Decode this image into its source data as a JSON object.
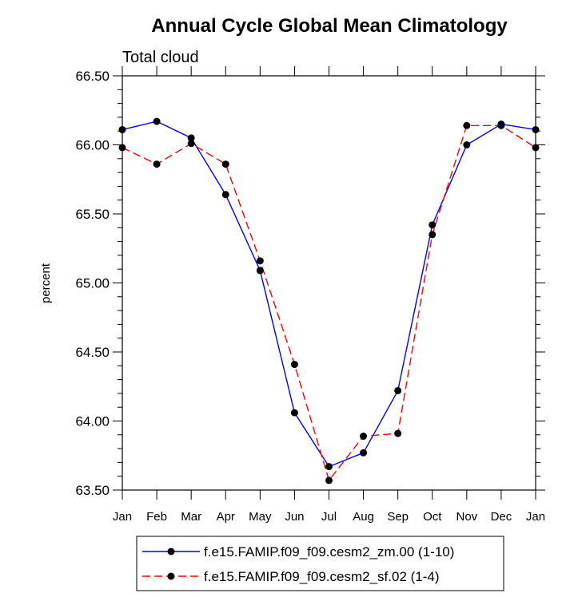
{
  "chart_data": {
    "type": "line",
    "title": "Annual Cycle Global Mean Climatology",
    "subtitle": "Total cloud",
    "ylabel": "percent",
    "xlabel": "",
    "categories": [
      "Jan",
      "Feb",
      "Mar",
      "Apr",
      "May",
      "Jun",
      "Jul",
      "Aug",
      "Sep",
      "Oct",
      "Nov",
      "Dec",
      "Jan"
    ],
    "ylim": [
      63.5,
      66.5
    ],
    "yticks": [
      "63.50",
      "64.00",
      "64.50",
      "65.00",
      "65.50",
      "66.00",
      "66.50"
    ],
    "series": [
      {
        "name": "f.e15.FAMIP.f09_f09.cesm2_zm.00 (1-10)",
        "color": "#0000ff",
        "dash": "solid",
        "values": [
          66.11,
          66.17,
          66.05,
          65.64,
          65.09,
          64.06,
          63.67,
          63.77,
          64.22,
          65.42,
          66.0,
          66.15,
          66.11
        ]
      },
      {
        "name": "f.e15.FAMIP.f09_f09.cesm2_sf.02 (1-4)",
        "color": "#ff0000",
        "dash": "dashed",
        "values": [
          65.98,
          65.86,
          66.01,
          65.86,
          65.16,
          64.41,
          63.57,
          63.89,
          63.91,
          65.35,
          66.14,
          66.14,
          65.98
        ]
      }
    ],
    "marker": "filled-circle",
    "marker_color": "#000000",
    "legend_position": "bottom"
  }
}
